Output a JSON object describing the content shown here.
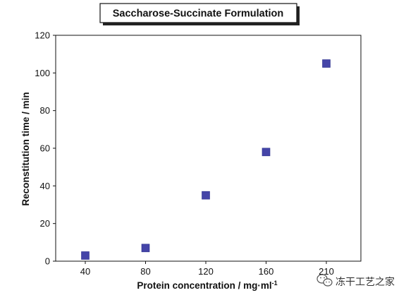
{
  "chart_data": {
    "type": "scatter",
    "title": "Saccharose-Succinate Formulation",
    "xlabel": "Protein concentration / mg·ml",
    "xlabel_superscript": "-1",
    "ylabel": "Reconstitution time / min",
    "categories": [
      "40",
      "80",
      "120",
      "160",
      "210"
    ],
    "series": [
      {
        "values": [
          3,
          7,
          35,
          58,
          105
        ]
      }
    ],
    "ylim": [
      0,
      120
    ],
    "yticks": [
      0,
      20,
      40,
      60,
      80,
      100,
      120
    ],
    "grid": false,
    "marker": "square",
    "colors": {
      "marker": "#4545a8",
      "axis": "#111111"
    }
  },
  "watermark": {
    "text": "冻干工艺之家",
    "icon": "wechat-icon"
  }
}
